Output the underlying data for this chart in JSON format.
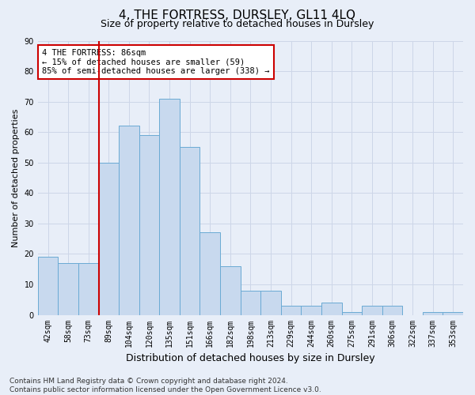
{
  "title": "4, THE FORTRESS, DURSLEY, GL11 4LQ",
  "subtitle": "Size of property relative to detached houses in Dursley",
  "xlabel": "Distribution of detached houses by size in Dursley",
  "ylabel": "Number of detached properties",
  "categories": [
    "42sqm",
    "58sqm",
    "73sqm",
    "89sqm",
    "104sqm",
    "120sqm",
    "135sqm",
    "151sqm",
    "166sqm",
    "182sqm",
    "198sqm",
    "213sqm",
    "229sqm",
    "244sqm",
    "260sqm",
    "275sqm",
    "291sqm",
    "306sqm",
    "322sqm",
    "337sqm",
    "353sqm"
  ],
  "values": [
    19,
    17,
    17,
    50,
    62,
    59,
    71,
    55,
    27,
    16,
    8,
    8,
    3,
    3,
    4,
    1,
    3,
    3,
    0,
    1,
    1
  ],
  "bar_color": "#c8d9ee",
  "bar_edge_color": "#6aaad4",
  "vline_x_index": 3,
  "vline_color": "#cc0000",
  "annotation_text": "4 THE FORTRESS: 86sqm\n← 15% of detached houses are smaller (59)\n85% of semi-detached houses are larger (338) →",
  "annotation_box_facecolor": "#ffffff",
  "annotation_box_edgecolor": "#cc0000",
  "ylim": [
    0,
    90
  ],
  "yticks": [
    0,
    10,
    20,
    30,
    40,
    50,
    60,
    70,
    80,
    90
  ],
  "grid_color": "#cdd6e8",
  "background_color": "#e8eef8",
  "footer": "Contains HM Land Registry data © Crown copyright and database right 2024.\nContains public sector information licensed under the Open Government Licence v3.0.",
  "title_fontsize": 11,
  "subtitle_fontsize": 9,
  "xlabel_fontsize": 9,
  "ylabel_fontsize": 8,
  "tick_fontsize": 7,
  "annotation_fontsize": 7.5,
  "footer_fontsize": 6.5
}
